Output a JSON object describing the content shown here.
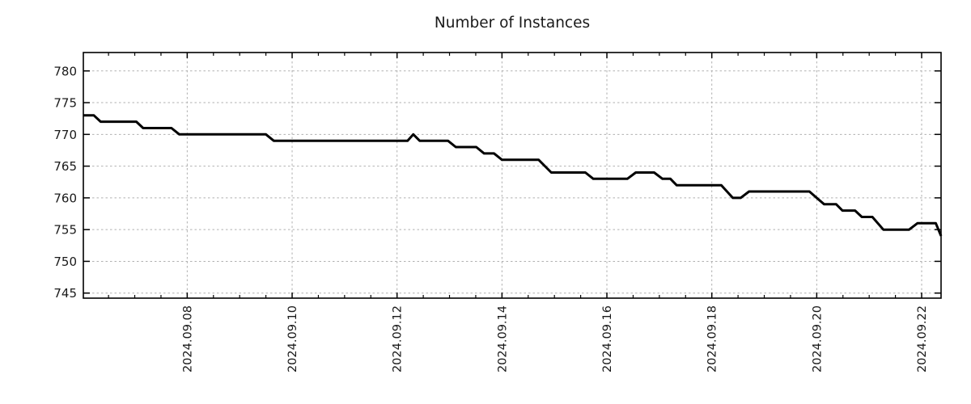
{
  "chart_data": {
    "type": "line",
    "title": "Number of Instances",
    "xlabel": "",
    "ylabel": "",
    "x_unit": "day of September 2024 (fractional)",
    "xlim": [
      6.02,
      22.37
    ],
    "ylim": [
      744.2,
      782.9
    ],
    "grid": true,
    "grid_color": "#b0b0b0",
    "axis_color": "#000000",
    "label_color": "#1a1a1a",
    "yticks": [
      745,
      750,
      755,
      760,
      765,
      770,
      775,
      780
    ],
    "xticks": [
      {
        "value": 8,
        "label": "2024.09.08"
      },
      {
        "value": 10,
        "label": "2024.09.10"
      },
      {
        "value": 12,
        "label": "2024.09.12"
      },
      {
        "value": 14,
        "label": "2024.09.14"
      },
      {
        "value": 16,
        "label": "2024.09.16"
      },
      {
        "value": 18,
        "label": "2024.09.18"
      },
      {
        "value": 20,
        "label": "2024.09.20"
      },
      {
        "value": 22,
        "label": "2024.09.22"
      }
    ],
    "minor_xtick_step": 0.5,
    "series": [
      {
        "name": "instances",
        "color": "#000000",
        "width": 3,
        "points": [
          [
            6.02,
            773
          ],
          [
            6.22,
            773
          ],
          [
            6.35,
            772
          ],
          [
            7.03,
            772
          ],
          [
            7.16,
            771
          ],
          [
            7.7,
            771
          ],
          [
            7.85,
            770
          ],
          [
            9.5,
            770
          ],
          [
            9.65,
            769
          ],
          [
            12.2,
            769
          ],
          [
            12.31,
            770
          ],
          [
            12.43,
            769
          ],
          [
            12.97,
            769
          ],
          [
            13.12,
            768
          ],
          [
            13.51,
            768
          ],
          [
            13.66,
            767
          ],
          [
            13.85,
            767
          ],
          [
            14.0,
            766
          ],
          [
            14.7,
            766
          ],
          [
            14.94,
            764
          ],
          [
            15.59,
            764
          ],
          [
            15.74,
            763
          ],
          [
            16.39,
            763
          ],
          [
            16.55,
            764
          ],
          [
            16.9,
            764
          ],
          [
            17.06,
            763
          ],
          [
            17.21,
            763
          ],
          [
            17.33,
            762
          ],
          [
            18.18,
            762
          ],
          [
            18.4,
            760
          ],
          [
            18.55,
            760
          ],
          [
            18.71,
            761
          ],
          [
            19.86,
            761
          ],
          [
            20.0,
            760
          ],
          [
            20.14,
            759
          ],
          [
            20.37,
            759
          ],
          [
            20.49,
            758
          ],
          [
            20.73,
            758
          ],
          [
            20.86,
            757
          ],
          [
            21.06,
            757
          ],
          [
            21.27,
            755
          ],
          [
            21.76,
            755
          ],
          [
            21.92,
            756
          ],
          [
            22.27,
            756
          ],
          [
            22.37,
            754
          ]
        ]
      }
    ]
  }
}
